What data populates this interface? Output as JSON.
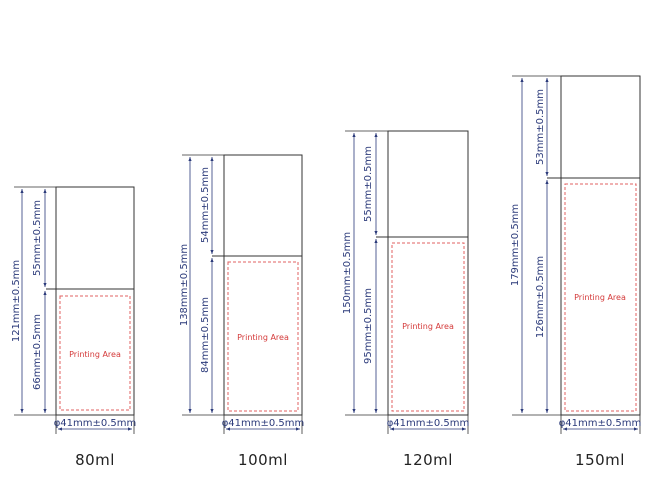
{
  "bottles": [
    {
      "capacity": "80ml",
      "total_label": "121mm±0.5mm",
      "cap_label": "55mm±0.5mm",
      "body_label": "66mm±0.5mm",
      "diameter_label": "φ41mm±0.5mm",
      "printing_label": "Printing Area"
    },
    {
      "capacity": "100ml",
      "total_label": "138mm±0.5mm",
      "cap_label": "54mm±0.5mm",
      "body_label": "84mm±0.5mm",
      "diameter_label": "φ41mm±0.5mm",
      "printing_label": "Printing Area"
    },
    {
      "capacity": "120ml",
      "total_label": "150mm±0.5mm",
      "cap_label": "55mm±0.5mm",
      "body_label": "95mm±0.5mm",
      "diameter_label": "φ41mm±0.5mm",
      "printing_label": "Printing Area"
    },
    {
      "capacity": "150ml",
      "total_label": "179mm±0.5mm",
      "cap_label": "53mm±0.5mm",
      "body_label": "126mm±0.5mm",
      "diameter_label": "φ41mm±0.5mm",
      "printing_label": "Printing Area"
    }
  ],
  "colors": {
    "outline": "#333333",
    "dimension": "#2b3a7a",
    "printing_area": "#e06060"
  }
}
